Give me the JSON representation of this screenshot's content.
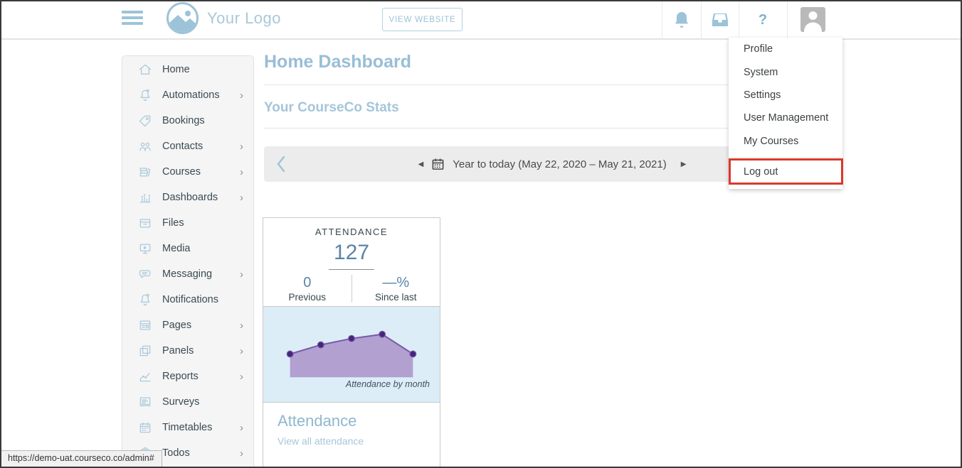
{
  "page": {
    "url_tooltip": "https://demo-uat.courseco.co/admin#"
  },
  "colors": {
    "accent_blue": "#9cc3d8",
    "title_blue": "#98bed6",
    "number_blue": "#5b84a7",
    "annotation_red": "#d9392e",
    "chart_bg": "#dcedf7"
  },
  "header": {
    "logo_text": "Your Logo",
    "view_website_label": "VIEW WEBSITE",
    "help_glyph": "?",
    "icons": [
      "bell-icon",
      "inbox-icon",
      "help-icon",
      "avatar"
    ]
  },
  "user_menu": {
    "items": [
      "Profile",
      "System",
      "Settings",
      "User Management",
      "My Courses"
    ],
    "logout_label": "Log out",
    "highlighted_item": "Log out"
  },
  "sidebar": {
    "items": [
      {
        "label": "Home",
        "icon": "home-icon",
        "has_submenu": false
      },
      {
        "label": "Automations",
        "icon": "bell-outline-icon",
        "has_submenu": true
      },
      {
        "label": "Bookings",
        "icon": "tag-icon",
        "has_submenu": false
      },
      {
        "label": "Contacts",
        "icon": "people-icon",
        "has_submenu": true
      },
      {
        "label": "Courses",
        "icon": "books-icon",
        "has_submenu": true
      },
      {
        "label": "Dashboards",
        "icon": "bar-chart-icon",
        "has_submenu": true
      },
      {
        "label": "Files",
        "icon": "archive-icon",
        "has_submenu": false
      },
      {
        "label": "Media",
        "icon": "monitor-icon",
        "has_submenu": false
      },
      {
        "label": "Messaging",
        "icon": "speech-bubble-icon",
        "has_submenu": true
      },
      {
        "label": "Notifications",
        "icon": "bell-outline-icon",
        "has_submenu": false
      },
      {
        "label": "Pages",
        "icon": "browser-icon",
        "has_submenu": true
      },
      {
        "label": "Panels",
        "icon": "layers-icon",
        "has_submenu": true
      },
      {
        "label": "Reports",
        "icon": "line-chart-icon",
        "has_submenu": true
      },
      {
        "label": "Surveys",
        "icon": "survey-icon",
        "has_submenu": false
      },
      {
        "label": "Timetables",
        "icon": "calendar-icon",
        "has_submenu": true
      },
      {
        "label": "Todos",
        "icon": "clipboard-icon",
        "has_submenu": true
      }
    ],
    "chevron_glyph": "›"
  },
  "main": {
    "title": "Home Dashboard",
    "section_title": "Your CourseCo Stats",
    "date_nav": {
      "label": "Year to today (May 22, 2020 – May 21, 2021)",
      "prev_glyph": "◀",
      "next_glyph": "▶"
    },
    "attendance_card": {
      "kicker": "ATTENDANCE",
      "value": "127",
      "previous_value": "0",
      "previous_label": "Previous",
      "since_value": "—%",
      "since_label": "Since last",
      "chart_caption": "Attendance by month",
      "footer_title": "Attendance",
      "footer_link": "View all attendance"
    }
  },
  "chart_data": {
    "type": "area",
    "title": "Attendance by month",
    "x": [
      1,
      2,
      3,
      4,
      5
    ],
    "values": [
      33,
      46,
      55,
      61,
      33
    ],
    "xlabel": "",
    "ylabel": "",
    "axes_visible": false,
    "legend": false,
    "ylim": [
      0,
      100
    ],
    "colors": {
      "fill": "#b1a0d0",
      "line": "#7a5aa5",
      "point": "#44267c"
    }
  }
}
